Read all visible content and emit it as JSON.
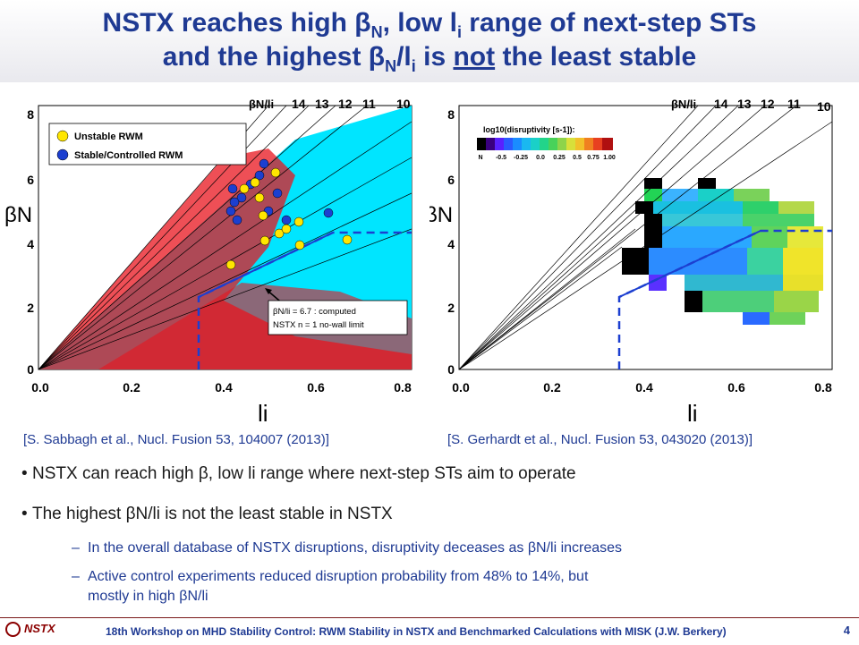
{
  "title": {
    "line1_a": "NSTX reaches high β",
    "line1_sub1": "N",
    "line1_b": ", low l",
    "line1_sub2": "i",
    "line1_c": " range of next-step STs",
    "line2_a": "and the highest β",
    "line2_sub1": "N",
    "line2_slash": "/l",
    "line2_sub2": "i",
    "line2_b": " is ",
    "line2_not": "not",
    "line2_c": " the least stable"
  },
  "left_plot": {
    "y_ticks": [
      "8",
      "6",
      "4",
      "2",
      "0"
    ],
    "x_ticks": [
      "0.0",
      "0.2",
      "0.4",
      "0.6",
      "0.8"
    ],
    "y_label": "βN",
    "x_label": "li",
    "ratio_label": "βN/li",
    "ratio_values": [
      "14",
      "13",
      "12",
      "11",
      "10"
    ],
    "legend_unstable": "Unstable RWM",
    "legend_stable": "Stable/Controlled RWM",
    "annotation_line1": "βN/li = 6.7 : computed",
    "annotation_line2": "NSTX n = 1 no-wall limit"
  },
  "right_plot": {
    "y_ticks": [
      "8",
      "6",
      "4",
      "2",
      "0"
    ],
    "x_ticks": [
      "0.0",
      "0.2",
      "0.4",
      "0.6",
      "0.8"
    ],
    "y_label": "βN",
    "x_label": "li",
    "ratio_label": "βN/li",
    "ratio_values": [
      "14",
      "13",
      "12",
      "11",
      "10"
    ],
    "colorbar_title": "log10(disruptivity [s-1]):",
    "colorbar_ticks": [
      "N",
      "-0.5",
      "-0.25",
      "0.0",
      "0.25",
      "0.5",
      "0.75",
      "1.00"
    ]
  },
  "citations": {
    "left": "[S. Sabbagh et al., Nucl. Fusion 53, 104007 (2013)]",
    "right": "[S. Gerhardt et al., Nucl. Fusion 53, 043020 (2013)]"
  },
  "bullets": {
    "b1": "NSTX can reach high β, low li range where next-step STs aim to operate",
    "b2": "The highest βN/li is not the least stable in NSTX",
    "b2a": "In the overall database of NSTX disruptions, disruptivity deceases as βN/li increases",
    "b2b_1": "Active control experiments reduced disruption probability from 48% to 14%, but",
    "b2b_2": "mostly in high βN/li"
  },
  "footer": {
    "logo": "NSTX",
    "text": "18th Workshop on MHD Stability Control: RWM Stability in NSTX and Benchmarked Calculations with MISK (J.W. Berkery)",
    "page": "4"
  },
  "colors": {
    "title": "#1f3a93",
    "unstable": "#ffe600",
    "stable": "#1c3fd0",
    "cyan": "#00e5ff",
    "red": "#e8141e"
  }
}
